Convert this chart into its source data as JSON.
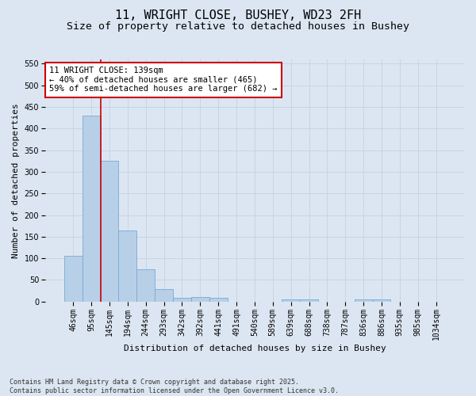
{
  "title_line1": "11, WRIGHT CLOSE, BUSHEY, WD23 2FH",
  "title_line2": "Size of property relative to detached houses in Bushey",
  "xlabel": "Distribution of detached houses by size in Bushey",
  "ylabel": "Number of detached properties",
  "categories": [
    "46sqm",
    "95sqm",
    "145sqm",
    "194sqm",
    "244sqm",
    "293sqm",
    "342sqm",
    "392sqm",
    "441sqm",
    "491sqm",
    "540sqm",
    "589sqm",
    "639sqm",
    "688sqm",
    "738sqm",
    "787sqm",
    "836sqm",
    "886sqm",
    "935sqm",
    "985sqm",
    "1034sqm"
  ],
  "values": [
    105,
    430,
    325,
    165,
    75,
    28,
    9,
    11,
    9,
    0,
    0,
    0,
    4,
    4,
    0,
    0,
    4,
    4,
    0,
    0,
    0
  ],
  "bar_color": "#b8cfe8",
  "bar_edge_color": "#7aaad0",
  "grid_color": "#c8d4e4",
  "background_color": "#dce6f2",
  "annotation_text": "11 WRIGHT CLOSE: 139sqm\n← 40% of detached houses are smaller (465)\n59% of semi-detached houses are larger (682) →",
  "annotation_box_color": "#ffffff",
  "annotation_border_color": "#cc0000",
  "vline_color": "#cc0000",
  "ylim": [
    0,
    560
  ],
  "yticks": [
    0,
    50,
    100,
    150,
    200,
    250,
    300,
    350,
    400,
    450,
    500,
    550
  ],
  "footnote": "Contains HM Land Registry data © Crown copyright and database right 2025.\nContains public sector information licensed under the Open Government Licence v3.0.",
  "title_fontsize": 11,
  "subtitle_fontsize": 9.5,
  "axis_label_fontsize": 8,
  "tick_fontsize": 7,
  "annotation_fontsize": 7.5,
  "footnote_fontsize": 6
}
